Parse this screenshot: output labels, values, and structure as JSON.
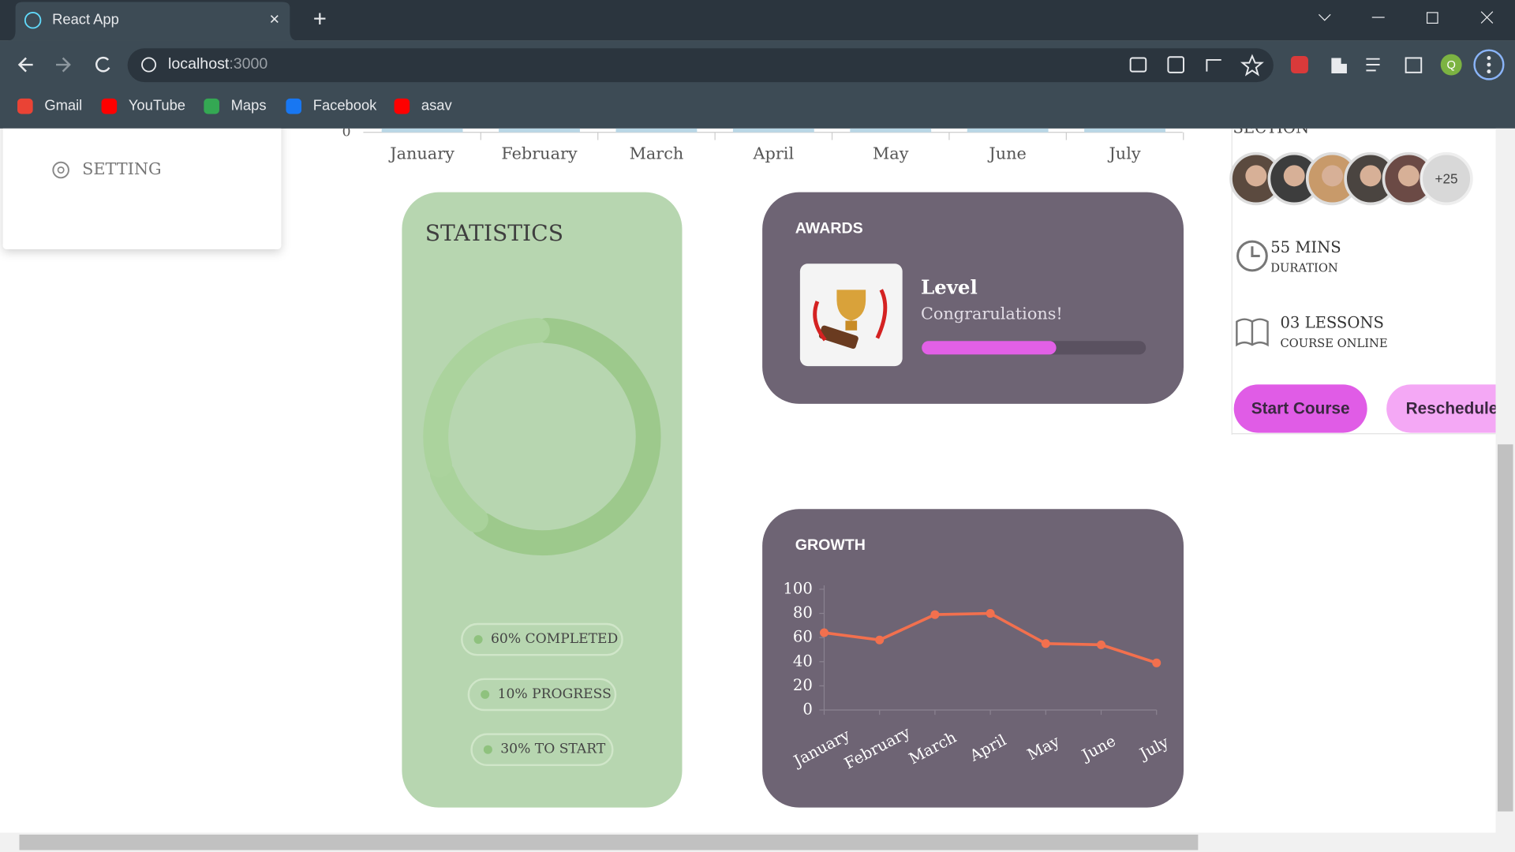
{
  "browser": {
    "tab_title": "React App",
    "url_host": "localhost",
    "url_port": ":3000",
    "bookmarks": [
      "Gmail",
      "YouTube",
      "Maps",
      "Facebook",
      "asav"
    ],
    "profile": "Q"
  },
  "sidebar": {
    "setting": "SETTING"
  },
  "top_chart": {
    "categories": [
      "January",
      "February",
      "March",
      "April",
      "May",
      "June",
      "July"
    ],
    "yticks": [
      0
    ]
  },
  "statistics": {
    "title": "STATISTICS",
    "segments": [
      {
        "label": "60% COMPLETED",
        "value": 60,
        "color": "#9dc98c"
      },
      {
        "label": "10% PROGRESS",
        "value": 10,
        "color": "#a9d29b"
      },
      {
        "label": "30% TO START",
        "value": 30,
        "color": "#abd39d"
      }
    ]
  },
  "awards": {
    "title": "AWARDS",
    "heading": "Level",
    "subtitle": "Congrarulations!",
    "progress": 60,
    "progress_max": 100
  },
  "growth": {
    "title": "GROWTH",
    "chart_data": {
      "type": "line",
      "categories": [
        "January",
        "February",
        "March",
        "April",
        "May",
        "June",
        "July"
      ],
      "values": [
        64,
        58,
        79,
        80,
        55,
        54,
        39
      ],
      "color": "#f2704e",
      "ylim": [
        0,
        100
      ],
      "yticks": [
        0,
        20,
        40,
        60,
        80,
        100
      ]
    }
  },
  "course": {
    "section": "SECTION",
    "more_people": "+25",
    "duration_value": "55 MINS",
    "duration_label": "DURATION",
    "lessons_value": "03 LESSONS",
    "lessons_label": "COURSE ONLINE",
    "start_button": "Start Course",
    "reschedule_button": "Reschedule"
  }
}
